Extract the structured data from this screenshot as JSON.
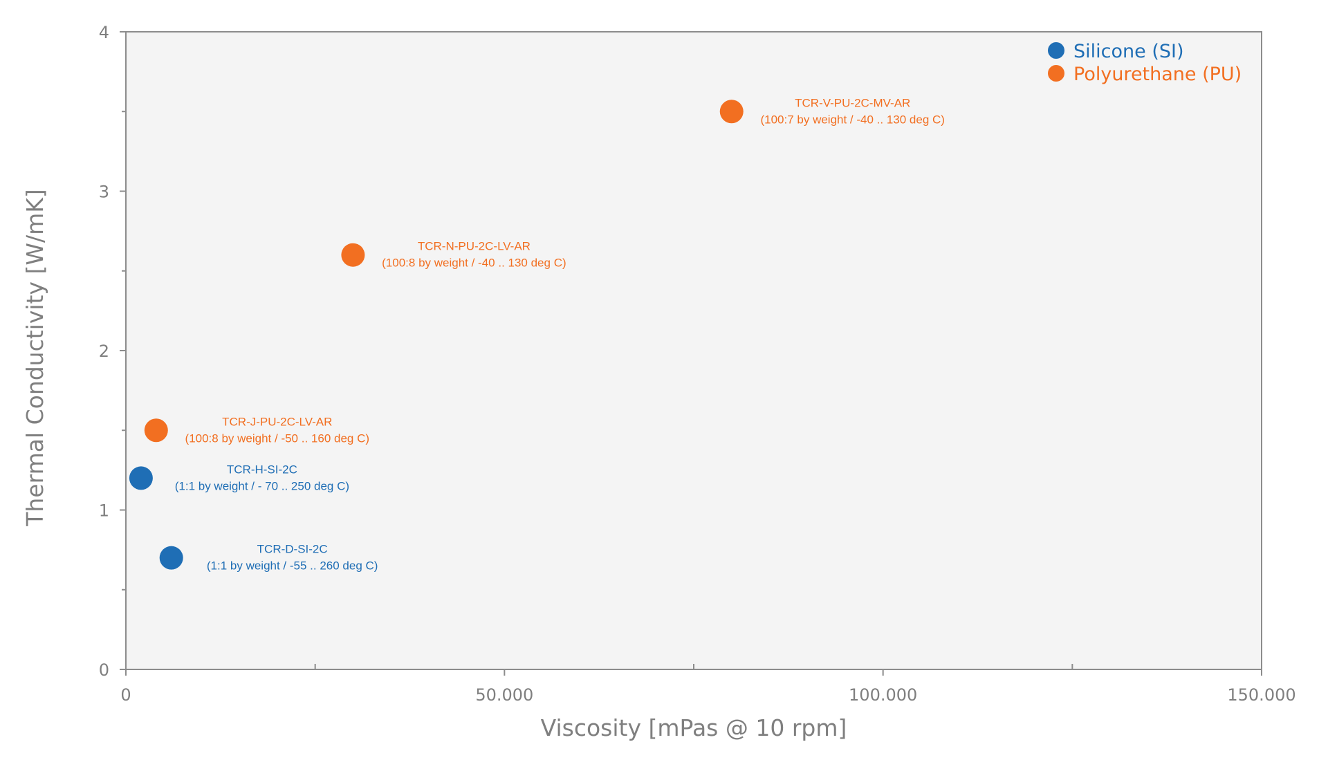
{
  "chart_data": {
    "type": "scatter",
    "title": "",
    "xlabel": "Viscosity [mPas @ 10 rpm]",
    "ylabel": "Thermal Conductivity [W/mK]",
    "xlim": [
      0,
      150000
    ],
    "ylim": [
      0,
      4
    ],
    "x_ticks": [
      0,
      50000,
      100000,
      150000
    ],
    "x_tick_labels": [
      "0",
      "50.000",
      "100.000",
      "150.000"
    ],
    "x_minor_ticks": [
      25000,
      75000,
      125000
    ],
    "y_ticks": [
      0,
      1,
      2,
      3,
      4
    ],
    "y_tick_labels": [
      "0",
      "1",
      "2",
      "3",
      "4"
    ],
    "y_minor_ticks": [
      0.5,
      1.5,
      2.5,
      3.5
    ],
    "grid": false,
    "plot_background": "#f4f4f4",
    "legend_position": "top-right",
    "series": [
      {
        "name": "Silicone (SI)",
        "color": "#1f6eb5",
        "points": [
          {
            "x": 2000,
            "y": 1.2,
            "label": "TCR-H-SI-2C",
            "sublabel": "(1:1 by weight / - 70 .. 250 deg C)"
          },
          {
            "x": 6000,
            "y": 0.7,
            "label": "TCR-D-SI-2C",
            "sublabel": "(1:1 by weight / -55 .. 260 deg C)"
          }
        ]
      },
      {
        "name": "Polyurethane (PU)",
        "color": "#f26f21",
        "points": [
          {
            "x": 4000,
            "y": 1.5,
            "label": "TCR-J-PU-2C-LV-AR",
            "sublabel": "(100:8 by weight / -50 .. 160 deg C)"
          },
          {
            "x": 30000,
            "y": 2.6,
            "label": "TCR-N-PU-2C-LV-AR",
            "sublabel": "(100:8 by weight / -40 .. 130 deg C)"
          },
          {
            "x": 80000,
            "y": 3.5,
            "label": "TCR-V-PU-2C-MV-AR",
            "sublabel": "(100:7 by weight / -40 .. 130 deg C)"
          }
        ]
      }
    ]
  }
}
